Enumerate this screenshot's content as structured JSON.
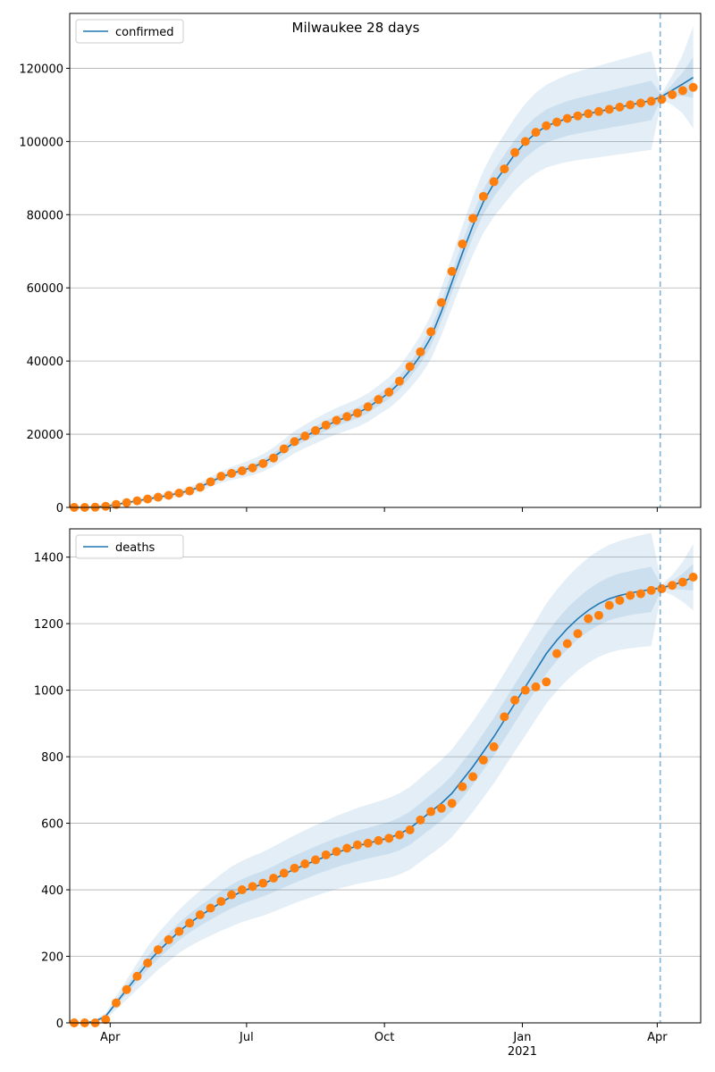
{
  "chart_data": [
    {
      "type": "line",
      "title": "Milwaukee 28 days",
      "x": [
        "2020-03-08",
        "2020-03-15",
        "2020-03-22",
        "2020-03-29",
        "2020-04-05",
        "2020-04-12",
        "2020-04-19",
        "2020-04-26",
        "2020-05-03",
        "2020-05-10",
        "2020-05-17",
        "2020-05-24",
        "2020-05-31",
        "2020-06-07",
        "2020-06-14",
        "2020-06-21",
        "2020-06-28",
        "2020-07-05",
        "2020-07-12",
        "2020-07-19",
        "2020-07-26",
        "2020-08-02",
        "2020-08-09",
        "2020-08-16",
        "2020-08-23",
        "2020-08-30",
        "2020-09-06",
        "2020-09-13",
        "2020-09-20",
        "2020-09-27",
        "2020-10-04",
        "2020-10-11",
        "2020-10-18",
        "2020-10-25",
        "2020-11-01",
        "2020-11-08",
        "2020-11-15",
        "2020-11-22",
        "2020-11-29",
        "2020-12-06",
        "2020-12-13",
        "2020-12-20",
        "2020-12-27",
        "2021-01-03",
        "2021-01-10",
        "2021-01-17",
        "2021-01-24",
        "2021-01-31",
        "2021-02-07",
        "2021-02-14",
        "2021-02-21",
        "2021-02-28",
        "2021-03-07",
        "2021-03-14",
        "2021-03-21",
        "2021-03-28",
        "2021-04-04",
        "2021-04-11",
        "2021-04-18",
        "2021-04-25"
      ],
      "series": [
        {
          "name": "confirmed",
          "color": "#1f77b4",
          "values": [
            0,
            0,
            100,
            350,
            800,
            1300,
            1800,
            2300,
            2800,
            3300,
            3900,
            4600,
            5600,
            7000,
            8300,
            9300,
            10100,
            11000,
            12200,
            13800,
            15800,
            17800,
            19400,
            20900,
            22300,
            23600,
            24700,
            25800,
            27300,
            29300,
            31300,
            34000,
            37500,
            41500,
            46500,
            53500,
            61500,
            69500,
            77000,
            83500,
            88500,
            92500,
            96500,
            99800,
            102300,
            104200,
            105300,
            106300,
            107000,
            107600,
            108200,
            108800,
            109400,
            110000,
            110600,
            111200,
            112300,
            114000,
            115700,
            117500
          ]
        }
      ],
      "observed": {
        "color": "#ff7f0e",
        "values": [
          0,
          0,
          50,
          300,
          800,
          1300,
          1800,
          2300,
          2800,
          3300,
          3900,
          4500,
          5500,
          7000,
          8500,
          9300,
          10000,
          10800,
          12000,
          13500,
          16000,
          18000,
          19500,
          21000,
          22500,
          23800,
          24800,
          25800,
          27500,
          29500,
          31500,
          34500,
          38500,
          42500,
          48000,
          56000,
          64500,
          72000,
          79000,
          85000,
          89000,
          92500,
          97000,
          100000,
          102500,
          104300,
          105300,
          106300,
          107000,
          107600,
          108200,
          108800,
          109400,
          110000,
          110500,
          111000,
          111500,
          112800,
          113900,
          114800
        ]
      },
      "bands": [
        {
          "color": "#1f77b4",
          "lower": [
            0,
            0,
            50,
            200,
            500,
            900,
            1300,
            1700,
            2100,
            2500,
            3000,
            3600,
            4400,
            5600,
            6700,
            7500,
            8100,
            8800,
            9800,
            11200,
            13000,
            14800,
            16200,
            17500,
            18800,
            20000,
            21000,
            22000,
            23400,
            25300,
            27100,
            29500,
            32500,
            36000,
            40500,
            47000,
            54500,
            62000,
            69000,
            75000,
            79500,
            83000,
            86500,
            89300,
            91300,
            92900,
            93700,
            94400,
            94900,
            95300,
            95700,
            96100,
            96500,
            96900,
            97300,
            97700,
            111300,
            110000,
            107700,
            103500
          ],
          "upper": [
            0,
            0,
            150,
            500,
            1100,
            1700,
            2300,
            2900,
            3500,
            4100,
            4800,
            5600,
            6800,
            8400,
            9900,
            11100,
            12100,
            13200,
            14600,
            16400,
            18600,
            20800,
            22600,
            24300,
            25800,
            27200,
            28400,
            29600,
            31200,
            33300,
            35500,
            38500,
            42500,
            47000,
            52500,
            60000,
            68500,
            77000,
            85000,
            92000,
            97500,
            102000,
            106500,
            110300,
            113300,
            115500,
            116900,
            118200,
            119100,
            119900,
            120700,
            121500,
            122300,
            123100,
            123900,
            124700,
            113300,
            118000,
            123700,
            131500
          ]
        },
        {
          "color": "#1f77b4",
          "lower": [
            0,
            0,
            80,
            290,
            680,
            1140,
            1600,
            2060,
            2520,
            2980,
            3540,
            4200,
            5120,
            6440,
            7660,
            8580,
            9300,
            10120,
            11240,
            12760,
            14680,
            16600,
            18120,
            19540,
            20900,
            22160,
            23220,
            24280,
            25740,
            27700,
            29620,
            32200,
            35500,
            39300,
            44100,
            50900,
            58700,
            66500,
            73800,
            80100,
            84900,
            88700,
            92500,
            95600,
            97900,
            99680,
            100660,
            101540,
            102160,
            102680,
            103200,
            103720,
            104240,
            104760,
            105280,
            105800,
            111900,
            112400,
            112500,
            111900
          ],
          "upper": [
            0,
            0,
            120,
            410,
            920,
            1460,
            2000,
            2540,
            3080,
            3620,
            4260,
            5000,
            6080,
            7560,
            8940,
            10020,
            10900,
            11880,
            13160,
            14840,
            16920,
            19000,
            20680,
            22260,
            23700,
            25040,
            26180,
            27320,
            28860,
            30900,
            32980,
            35800,
            39500,
            43700,
            48900,
            56100,
            64300,
            72500,
            80200,
            86900,
            92100,
            96300,
            100500,
            104000,
            106700,
            108720,
            109940,
            111060,
            111840,
            112520,
            113200,
            113880,
            114560,
            115240,
            115920,
            116600,
            112700,
            115600,
            118900,
            123100
          ]
        }
      ],
      "vline": "2021-04-03",
      "xlim": [
        "2020-03-05",
        "2021-04-30"
      ],
      "xticks": [
        "2020-04-01",
        "2020-07-01",
        "2020-10-01",
        "2021-01-01",
        "2021-04-01"
      ],
      "ylim": [
        0,
        135000
      ],
      "yticks": [
        0,
        20000,
        40000,
        60000,
        80000,
        100000,
        120000
      ],
      "grid": "y",
      "legend": "upper left"
    },
    {
      "type": "line",
      "x": [
        "2020-03-08",
        "2020-03-15",
        "2020-03-22",
        "2020-03-29",
        "2020-04-05",
        "2020-04-12",
        "2020-04-19",
        "2020-04-26",
        "2020-05-03",
        "2020-05-10",
        "2020-05-17",
        "2020-05-24",
        "2020-05-31",
        "2020-06-07",
        "2020-06-14",
        "2020-06-21",
        "2020-06-28",
        "2020-07-05",
        "2020-07-12",
        "2020-07-19",
        "2020-07-26",
        "2020-08-02",
        "2020-08-09",
        "2020-08-16",
        "2020-08-23",
        "2020-08-30",
        "2020-09-06",
        "2020-09-13",
        "2020-09-20",
        "2020-09-27",
        "2020-10-04",
        "2020-10-11",
        "2020-10-18",
        "2020-10-25",
        "2020-11-01",
        "2020-11-08",
        "2020-11-15",
        "2020-11-22",
        "2020-11-29",
        "2020-12-06",
        "2020-12-13",
        "2020-12-20",
        "2020-12-27",
        "2021-01-03",
        "2021-01-10",
        "2021-01-17",
        "2021-01-24",
        "2021-01-31",
        "2021-02-07",
        "2021-02-14",
        "2021-02-21",
        "2021-02-28",
        "2021-03-07",
        "2021-03-14",
        "2021-03-21",
        "2021-03-28",
        "2021-04-04",
        "2021-04-11",
        "2021-04-18",
        "2021-04-25"
      ],
      "series": [
        {
          "name": "deaths",
          "color": "#1f77b4",
          "values": [
            0,
            0,
            5,
            20,
            60,
            100,
            140,
            180,
            215,
            245,
            275,
            300,
            322,
            342,
            362,
            380,
            395,
            407,
            418,
            432,
            447,
            462,
            475,
            488,
            500,
            512,
            522,
            532,
            540,
            548,
            556,
            568,
            585,
            610,
            635,
            660,
            690,
            730,
            770,
            815,
            860,
            910,
            960,
            1010,
            1060,
            1110,
            1150,
            1185,
            1215,
            1240,
            1260,
            1275,
            1285,
            1292,
            1298,
            1303,
            1308,
            1316,
            1326,
            1340
          ]
        }
      ],
      "observed": {
        "color": "#ff7f0e",
        "values": [
          0,
          0,
          0,
          10,
          60,
          100,
          140,
          180,
          220,
          250,
          275,
          300,
          325,
          345,
          365,
          385,
          400,
          410,
          420,
          435,
          450,
          465,
          478,
          490,
          505,
          515,
          525,
          535,
          540,
          548,
          555,
          565,
          580,
          610,
          635,
          645,
          660,
          710,
          740,
          790,
          830,
          920,
          970,
          1000,
          1010,
          1025,
          1110,
          1140,
          1170,
          1215,
          1225,
          1255,
          1270,
          1285,
          1290,
          1300,
          1305,
          1315,
          1325,
          1340
        ]
      },
      "bands": [
        {
          "color": "#1f77b4",
          "lower": [
            0,
            0,
            0,
            10,
            40,
            70,
            100,
            130,
            160,
            185,
            210,
            230,
            247,
            262,
            277,
            290,
            303,
            313,
            322,
            334,
            347,
            360,
            371,
            382,
            392,
            402,
            410,
            418,
            424,
            430,
            436,
            446,
            461,
            484,
            507,
            530,
            558,
            596,
            634,
            677,
            720,
            768,
            816,
            864,
            912,
            960,
            998,
            1031,
            1059,
            1082,
            1100,
            1113,
            1121,
            1126,
            1130,
            1133,
            1298,
            1286,
            1266,
            1240
          ],
          "upper": [
            0,
            0,
            10,
            30,
            80,
            130,
            180,
            230,
            270,
            305,
            340,
            370,
            397,
            422,
            447,
            470,
            487,
            501,
            514,
            530,
            547,
            564,
            579,
            594,
            608,
            622,
            634,
            646,
            656,
            666,
            676,
            690,
            709,
            736,
            763,
            790,
            822,
            864,
            906,
            953,
            1000,
            1052,
            1104,
            1156,
            1208,
            1260,
            1302,
            1339,
            1371,
            1398,
            1420,
            1437,
            1449,
            1458,
            1466,
            1473,
            1318,
            1346,
            1386,
            1440
          ]
        },
        {
          "color": "#1f77b4",
          "lower": [
            0,
            0,
            3,
            16,
            52,
            88,
            124,
            160,
            193,
            221,
            249,
            272,
            292,
            310,
            328,
            344,
            358,
            369,
            380,
            393,
            407,
            421,
            433,
            446,
            457,
            468,
            477,
            486,
            494,
            501,
            508,
            519,
            535,
            560,
            584,
            608,
            637,
            676,
            716,
            760,
            804,
            853,
            902,
            952,
            1001,
            1050,
            1089,
            1123,
            1153,
            1177,
            1196,
            1210,
            1219,
            1226,
            1231,
            1235,
            1304,
            1304,
            1302,
            1300
          ],
          "upper": [
            0,
            0,
            7,
            24,
            68,
            112,
            156,
            200,
            237,
            269,
            301,
            328,
            352,
            374,
            396,
            416,
            432,
            445,
            456,
            471,
            487,
            503,
            517,
            530,
            543,
            556,
            567,
            578,
            586,
            595,
            604,
            617,
            635,
            660,
            686,
            712,
            743,
            784,
            824,
            870,
            916,
            967,
            1018,
            1068,
            1119,
            1170,
            1211,
            1247,
            1277,
            1303,
            1324,
            1340,
            1351,
            1358,
            1365,
            1371,
            1312,
            1328,
            1350,
            1380
          ]
        }
      ],
      "vline": "2021-04-03",
      "xlim": [
        "2020-03-05",
        "2021-04-30"
      ],
      "xticks": [
        {
          "value": "2020-04-01",
          "label": "Apr"
        },
        {
          "value": "2020-07-01",
          "label": "Jul"
        },
        {
          "value": "2020-10-01",
          "label": "Oct"
        },
        {
          "value": "2021-01-01",
          "label": "Jan\n2021"
        },
        {
          "value": "2021-04-01",
          "label": "Apr"
        }
      ],
      "ylim": [
        0,
        1485
      ],
      "yticks": [
        0,
        200,
        400,
        600,
        800,
        1000,
        1200,
        1400
      ],
      "grid": "y",
      "legend": "upper left"
    }
  ]
}
